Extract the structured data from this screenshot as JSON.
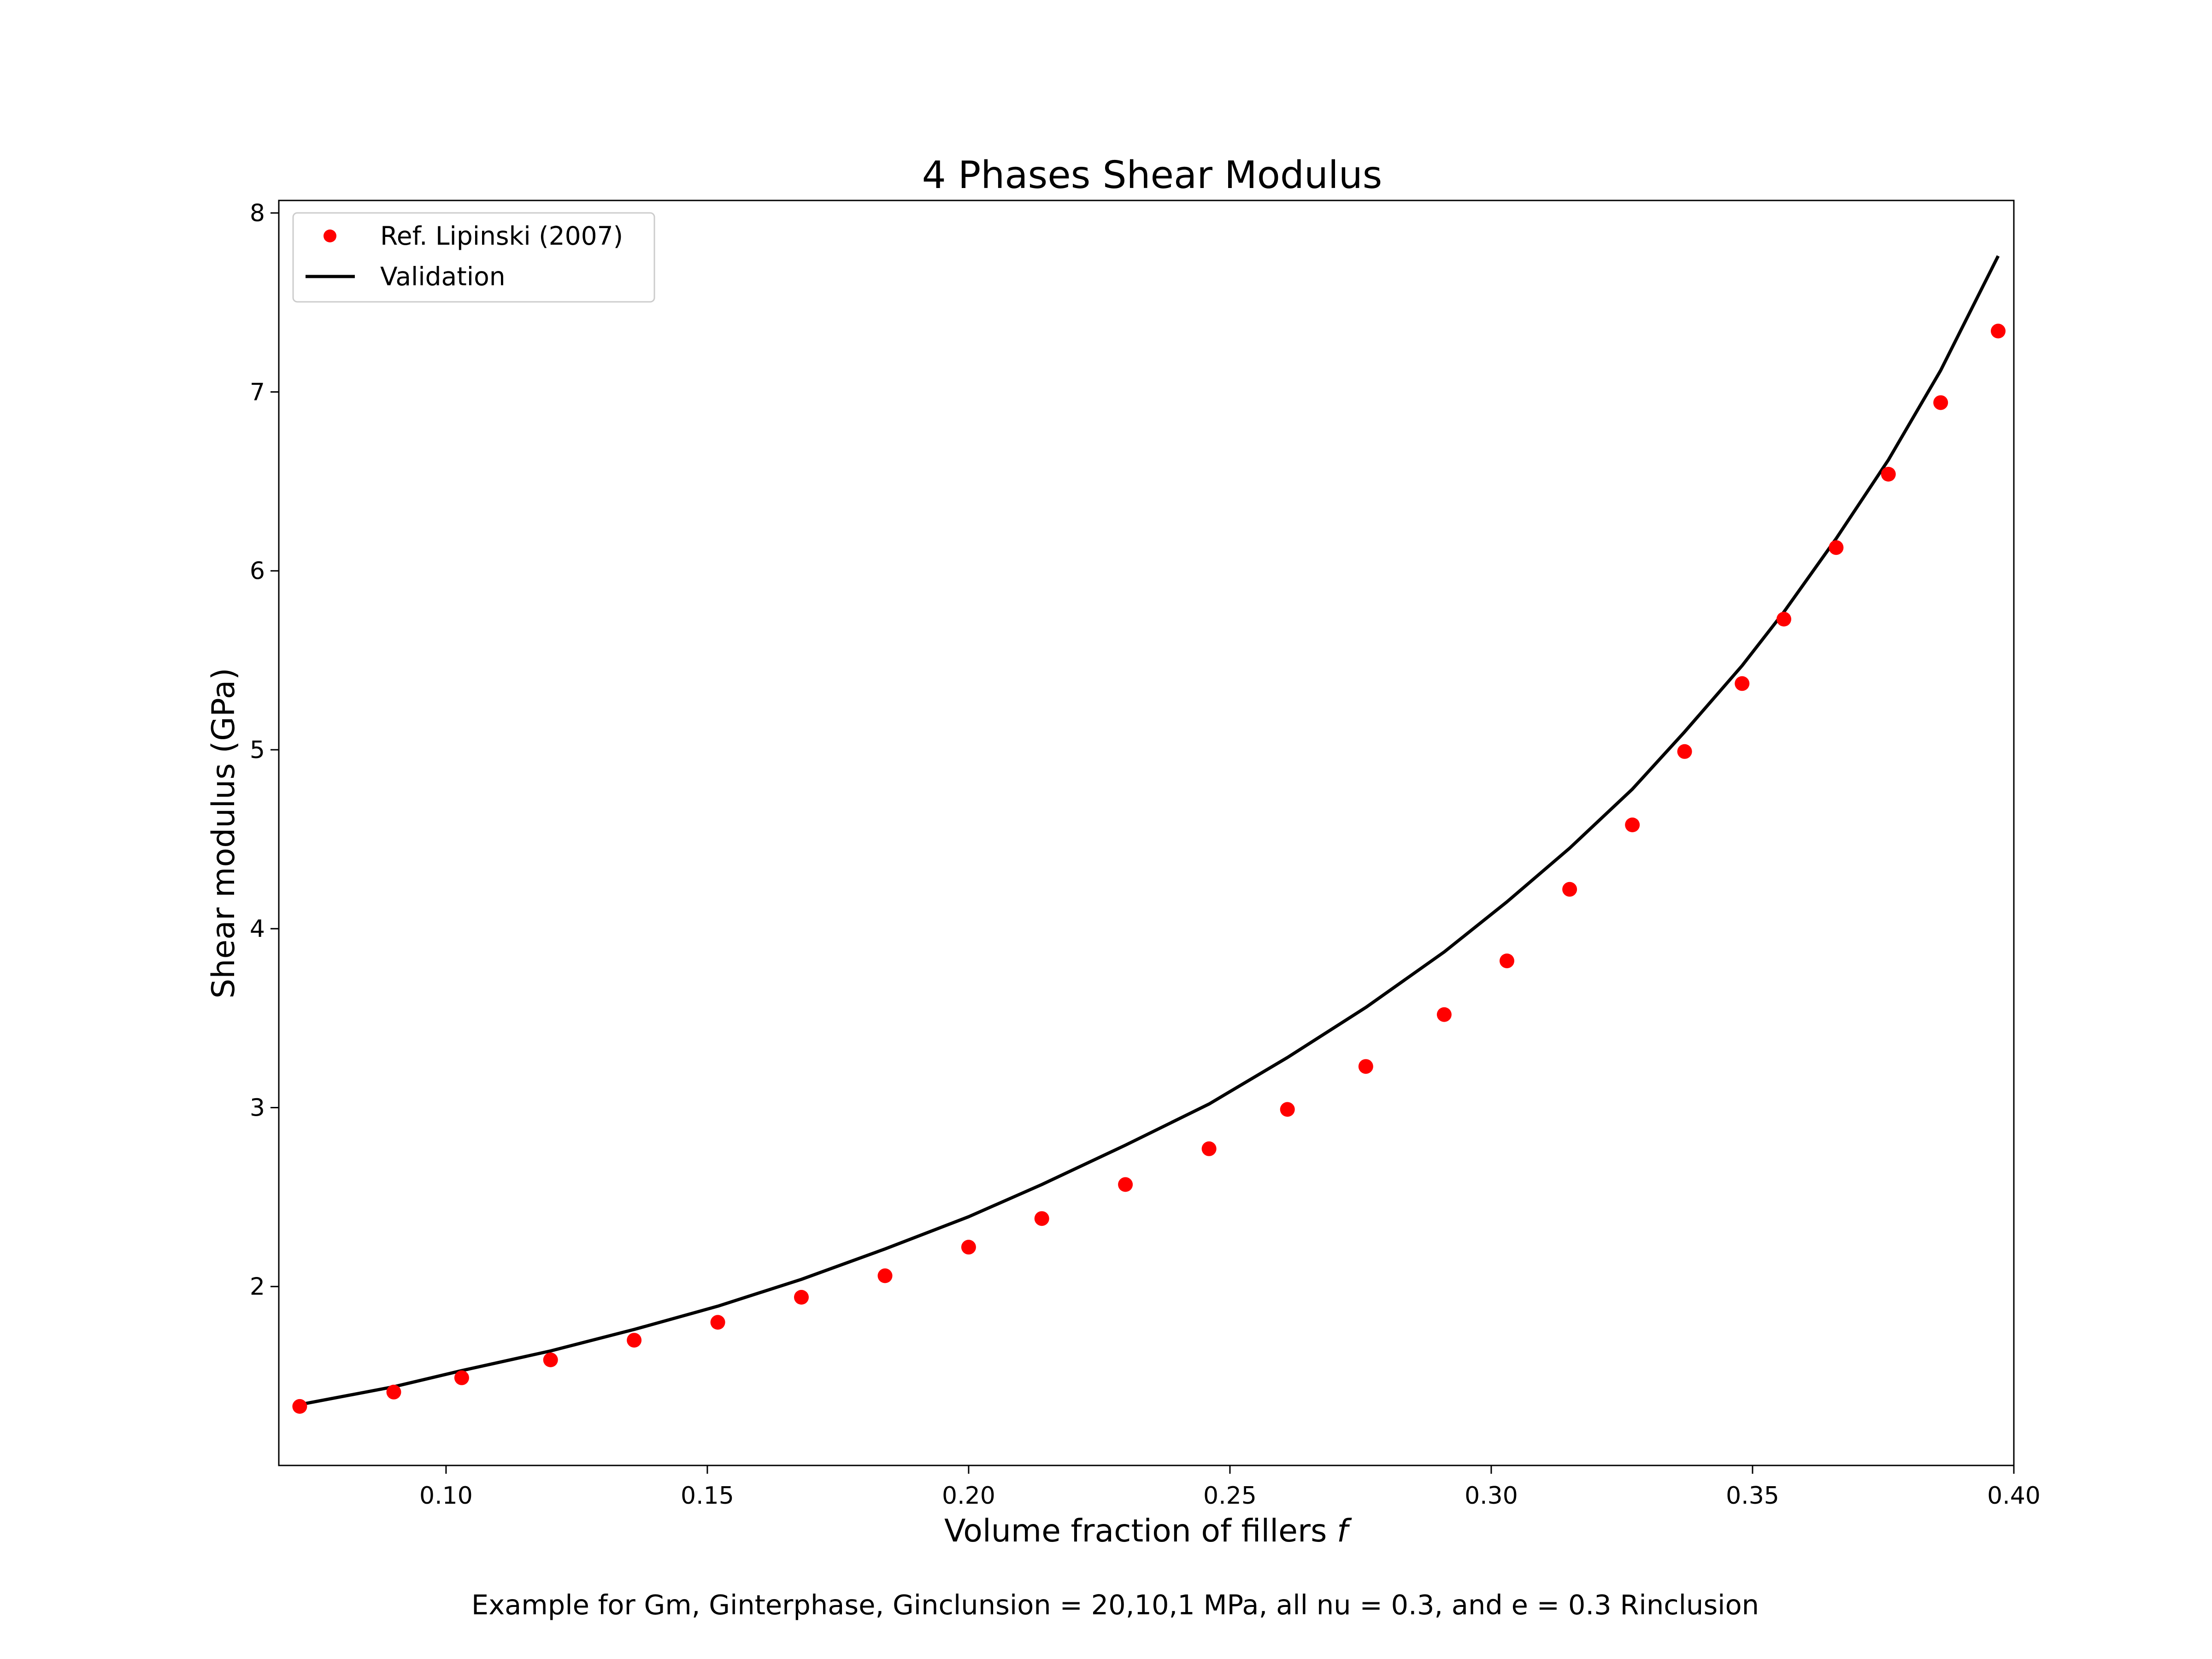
{
  "chart_data": {
    "type": "scatter",
    "title": "4 Phases Shear Modulus",
    "xlabel_text": "Volume fraction of fillers ",
    "xlabel_var": "f",
    "ylabel": "Shear modulus (GPa)",
    "caption": "Example for Gm, Ginterphase, Ginclunsion = 20,10,1 MPa, all nu = 0.3, and e = 0.3 Rinclusion",
    "xlim": [
      0.068,
      0.4
    ],
    "ylim": [
      1.0,
      8.07
    ],
    "xticks": [
      0.1,
      0.15,
      0.2,
      0.25,
      0.3,
      0.35,
      0.4
    ],
    "xtick_labels": [
      "0.10",
      "0.15",
      "0.20",
      "0.25",
      "0.30",
      "0.35",
      "0.40"
    ],
    "yticks": [
      2,
      3,
      4,
      5,
      6,
      7,
      8
    ],
    "ytick_labels": [
      "2",
      "3",
      "4",
      "5",
      "6",
      "7",
      "8"
    ],
    "grid": false,
    "legend_position": "top-left",
    "series": [
      {
        "name": "Ref. Lipinski (2007)",
        "kind": "scatter",
        "color": "#ff0000",
        "points": [
          [
            0.072,
            1.33
          ],
          [
            0.09,
            1.41
          ],
          [
            0.103,
            1.49
          ],
          [
            0.12,
            1.59
          ],
          [
            0.136,
            1.7
          ],
          [
            0.152,
            1.8
          ],
          [
            0.168,
            1.94
          ],
          [
            0.184,
            2.06
          ],
          [
            0.2,
            2.22
          ],
          [
            0.214,
            2.38
          ],
          [
            0.23,
            2.57
          ],
          [
            0.246,
            2.77
          ],
          [
            0.261,
            2.99
          ],
          [
            0.276,
            3.23
          ],
          [
            0.291,
            3.52
          ],
          [
            0.303,
            3.82
          ],
          [
            0.315,
            4.22
          ],
          [
            0.327,
            4.58
          ],
          [
            0.337,
            4.99
          ],
          [
            0.348,
            5.37
          ],
          [
            0.356,
            5.73
          ],
          [
            0.366,
            6.13
          ],
          [
            0.376,
            6.54
          ],
          [
            0.386,
            6.94
          ],
          [
            0.397,
            7.34
          ]
        ]
      },
      {
        "name": "Validation",
        "kind": "line",
        "color": "#000000",
        "points": [
          [
            0.072,
            1.34
          ],
          [
            0.09,
            1.44
          ],
          [
            0.103,
            1.53
          ],
          [
            0.12,
            1.64
          ],
          [
            0.136,
            1.76
          ],
          [
            0.152,
            1.89
          ],
          [
            0.168,
            2.04
          ],
          [
            0.184,
            2.21
          ],
          [
            0.2,
            2.39
          ],
          [
            0.214,
            2.57
          ],
          [
            0.23,
            2.79
          ],
          [
            0.246,
            3.02
          ],
          [
            0.261,
            3.28
          ],
          [
            0.276,
            3.56
          ],
          [
            0.291,
            3.87
          ],
          [
            0.303,
            4.15
          ],
          [
            0.315,
            4.45
          ],
          [
            0.327,
            4.78
          ],
          [
            0.337,
            5.1
          ],
          [
            0.348,
            5.47
          ],
          [
            0.356,
            5.77
          ],
          [
            0.366,
            6.18
          ],
          [
            0.376,
            6.62
          ],
          [
            0.386,
            7.12
          ],
          [
            0.397,
            7.76
          ]
        ]
      }
    ]
  }
}
